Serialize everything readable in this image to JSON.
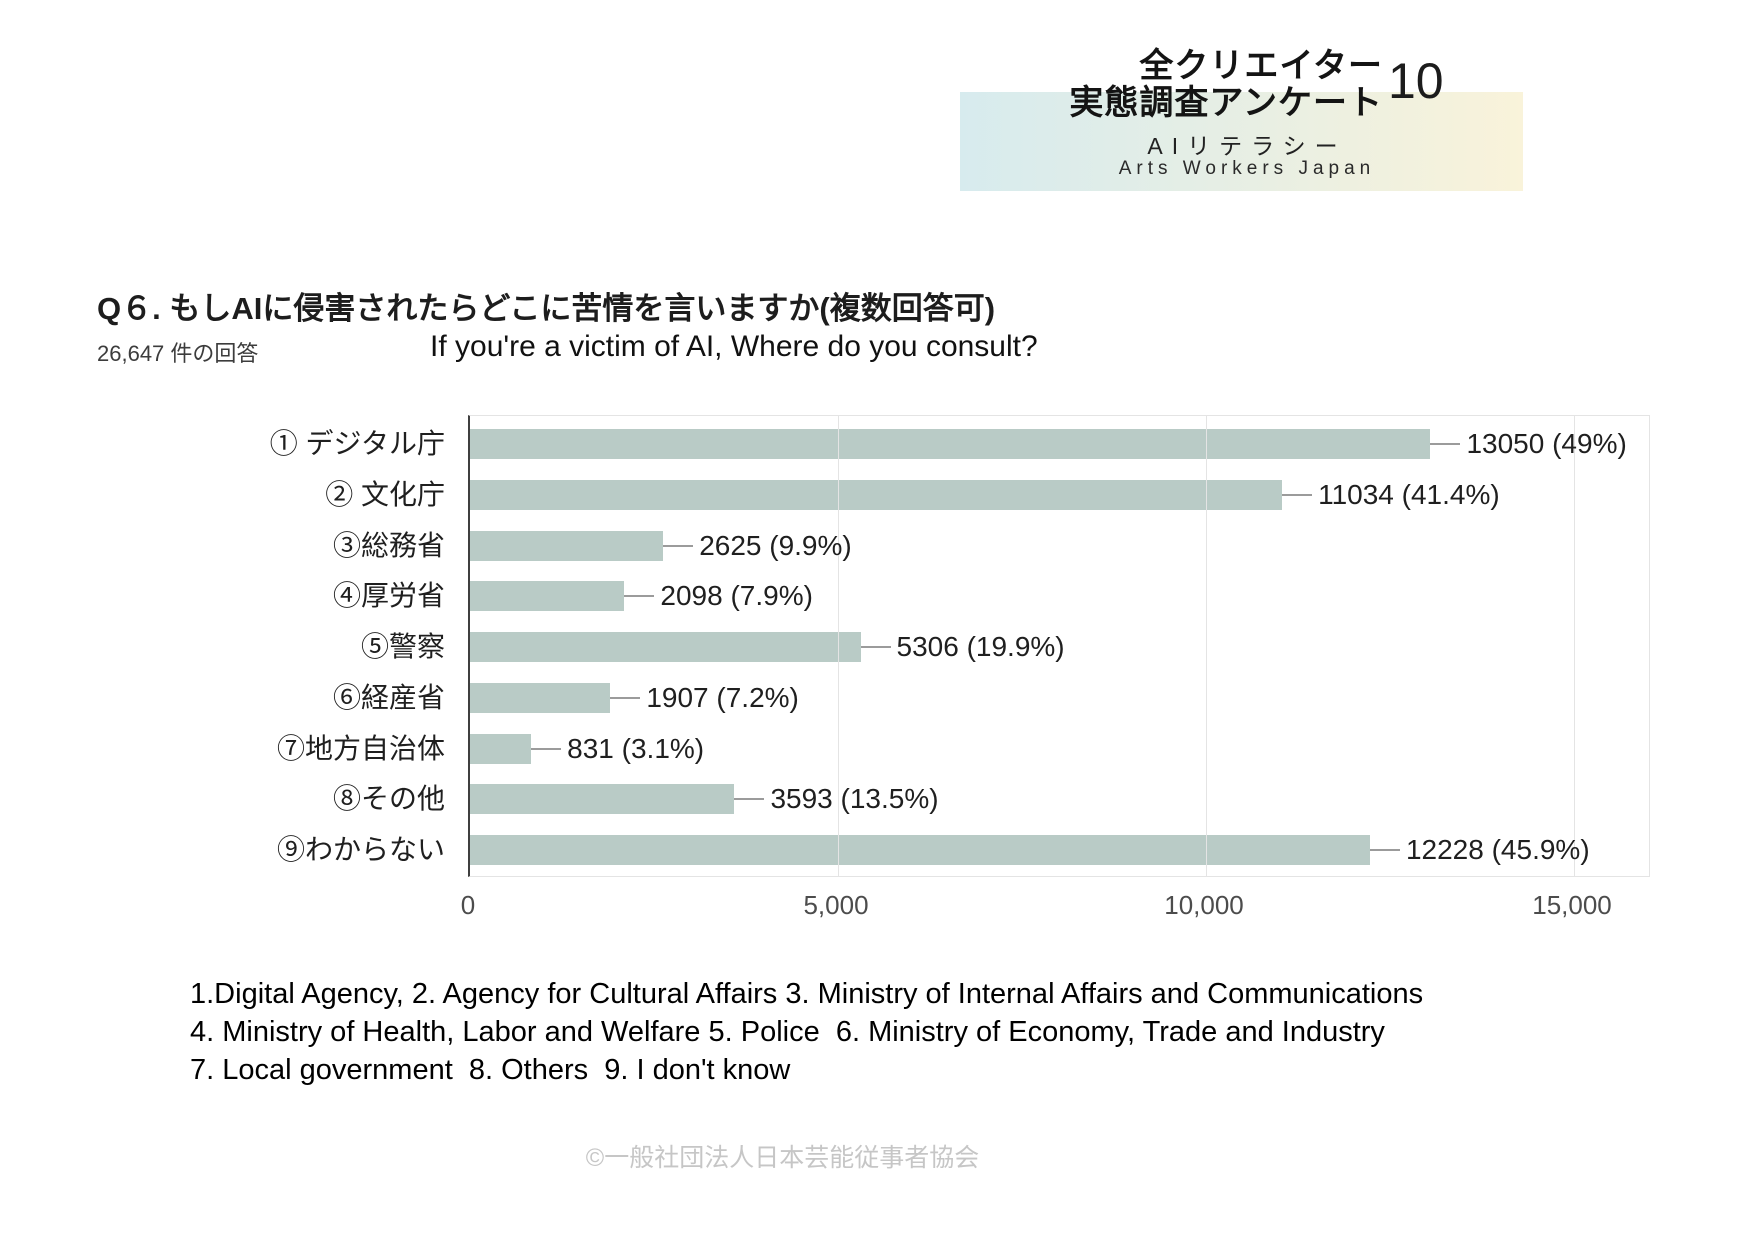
{
  "header": {
    "title_line1": "全クリエイター",
    "title_line2": "実態調査アンケート",
    "page_number": "10",
    "subtitle": "AIリテラシー",
    "org": "Arts Workers Japan",
    "band_colors": [
      "#d7ebee",
      "#f9f3da"
    ]
  },
  "question": {
    "title": "Q６. もしAIに侵害されたらどこに苦情を言いますか(複数回答可)",
    "responses": "26,647 件の回答",
    "subtitle_en": "If you're a victim of AI, Where do you consult?"
  },
  "chart_data": {
    "type": "bar",
    "orientation": "horizontal",
    "title": "Q６. もしAIに侵害されたらどこに苦情を言いますか(複数回答可)",
    "total_responses": 26647,
    "categories": [
      "① デジタル庁",
      "② 文化庁",
      "③総務省",
      "④厚労省",
      "⑤警察",
      "⑥経産省",
      "⑦地方自治体",
      "⑧その他",
      "⑨わからない"
    ],
    "values": [
      13050,
      11034,
      2625,
      2098,
      5306,
      1907,
      831,
      3593,
      12228
    ],
    "percents": [
      49,
      41.4,
      9.9,
      7.9,
      19.9,
      7.2,
      3.1,
      13.5,
      45.9
    ],
    "labels": [
      "13050 (49%)",
      "11034 (41.4%)",
      "2625 (9.9%)",
      "2098 (7.9%)",
      "5306 (19.9%)",
      "1907 (7.2%)",
      "831 (3.1%)",
      "3593 (13.5%)",
      "12228 (45.9%)"
    ],
    "xlim": [
      0,
      15000
    ],
    "xticks": [
      0,
      5000,
      10000,
      15000
    ],
    "xtick_labels": [
      "0",
      "5,000",
      "10,000",
      "15,000"
    ],
    "bar_color": "#b9cbc6",
    "grid": true,
    "legend": false
  },
  "footnote": {
    "line1": "1.Digital Agency, 2. Agency for Cultural Affairs 3. Ministry of Internal Affairs and Communications",
    "line2": "4. Ministry of Health, Labor and Welfare 5. Police  6. Ministry of Economy, Trade and Industry",
    "line3": "7. Local government  8. Others  9. I don't know"
  },
  "footer": {
    "copyright": "©一般社団法人日本芸能従事者協会"
  }
}
